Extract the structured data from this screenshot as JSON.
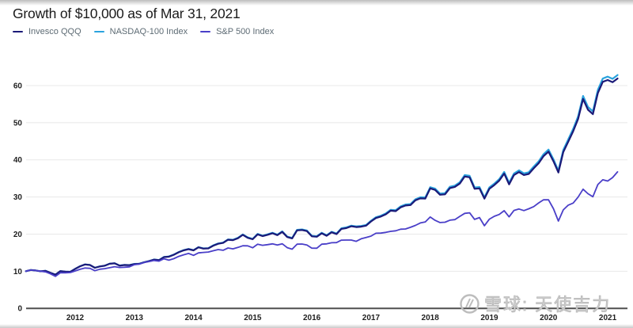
{
  "header": {
    "title": "Growth of $10,000 as of Mar 31, 2021"
  },
  "legend": {
    "items": [
      {
        "label": "Invesco QQQ",
        "color": "#1b1a78"
      },
      {
        "label": "NASDAQ-100 Index",
        "color": "#2aa3de"
      },
      {
        "label": "S&P 500 Index",
        "color": "#4a3fc8"
      }
    ]
  },
  "watermark": {
    "icon": "xueqiu-logo",
    "text": "雪球: 天使吉力"
  },
  "chart_data": {
    "type": "line",
    "title": "Growth of $10,000 as of Mar 31, 2021",
    "x_unit": "month",
    "x_range": [
      "2011-03",
      "2021-03"
    ],
    "x_tick_labels": [
      "2012",
      "2013",
      "2014",
      "2015",
      "2016",
      "2017",
      "2018",
      "2019",
      "2020",
      "2021"
    ],
    "x_tick_month_index": [
      10,
      22,
      34,
      46,
      58,
      70,
      82,
      94,
      106,
      118
    ],
    "y_ticks": [
      0,
      10,
      20,
      30,
      40,
      50,
      60
    ],
    "ylim": [
      0,
      63
    ],
    "grid": "horizontal",
    "legend_position": "top-left",
    "series": [
      {
        "name": "Invesco QQQ",
        "color": "#1b1a78",
        "values": [
          10,
          10.33,
          10.2,
          9.98,
          10.1,
          9.55,
          9.1,
          10.02,
          9.9,
          9.83,
          10.63,
          11.33,
          11.83,
          11.68,
          10.93,
          11.28,
          11.48,
          12.01,
          12.13,
          11.51,
          11.68,
          11.63,
          11.93,
          12,
          12.4,
          12.72,
          13.12,
          12.97,
          13.8,
          13.92,
          14.43,
          15.1,
          15.62,
          15.94,
          15.62,
          16.42,
          16.08,
          16.15,
          16.88,
          17.39,
          17.62,
          18.48,
          18.38,
          18.88,
          19.8,
          19,
          18.6,
          19.93,
          19.45,
          19.8,
          20.22,
          19.72,
          20.6,
          19.2,
          18.83,
          21,
          21.1,
          20.8,
          19.4,
          19.28,
          20.2,
          19.55,
          20.48,
          20,
          21.4,
          21.62,
          22.1,
          21.9,
          22,
          22.27,
          23.4,
          24.32,
          24.72,
          25.33,
          26.31,
          26.18,
          27.2,
          27.7,
          27.82,
          29.1,
          29.62,
          29.57,
          32.3,
          31.9,
          30.6,
          30.7,
          32.4,
          32.7,
          33.6,
          35.5,
          35.3,
          32.2,
          32.3,
          29.55,
          32.2,
          33.2,
          34.4,
          36.3,
          33.4,
          35.9,
          36.7,
          35.9,
          36.2,
          37.7,
          39.1,
          41,
          42.2,
          39.6,
          36.6,
          42.1,
          44.9,
          47.7,
          51,
          56.4,
          53.5,
          52.3,
          58,
          61,
          61.5,
          60.9,
          61.9
        ]
      },
      {
        "name": "NASDAQ-100 Index",
        "color": "#2aa3de",
        "values": [
          10,
          10.33,
          10.2,
          9.98,
          10.11,
          9.56,
          9.11,
          10.03,
          9.91,
          9.84,
          10.64,
          11.35,
          11.85,
          11.7,
          10.95,
          11.3,
          11.5,
          12.04,
          12.16,
          11.54,
          11.71,
          11.66,
          11.96,
          12.03,
          12.44,
          12.76,
          13.16,
          13.01,
          13.85,
          13.97,
          14.48,
          15.16,
          15.68,
          16.01,
          15.69,
          16.49,
          16.15,
          16.22,
          16.96,
          17.48,
          17.71,
          18.57,
          18.48,
          18.98,
          19.91,
          19.11,
          18.71,
          20.05,
          19.57,
          19.92,
          20.35,
          19.85,
          20.73,
          19.33,
          18.96,
          21.14,
          21.25,
          20.95,
          19.54,
          19.42,
          20.35,
          19.7,
          20.64,
          20.16,
          21.57,
          21.8,
          22.28,
          22.08,
          22.19,
          22.46,
          23.6,
          24.54,
          24.94,
          25.56,
          26.55,
          26.43,
          27.46,
          27.97,
          28.09,
          29.39,
          29.92,
          29.87,
          32.63,
          32.23,
          30.92,
          31.03,
          32.75,
          33.06,
          33.97,
          35.89,
          35.7,
          32.57,
          32.67,
          29.89,
          32.58,
          33.59,
          34.81,
          36.74,
          33.81,
          36.34,
          37.16,
          36.35,
          36.66,
          38.19,
          39.61,
          41.54,
          42.76,
          40.13,
          37.09,
          42.67,
          45.52,
          48.36,
          51.71,
          57.2,
          54.26,
          53.05,
          58.84,
          61.89,
          62.41,
          61.81,
          62.83
        ]
      },
      {
        "name": "S&P 500 Index",
        "color": "#4a3fc8",
        "values": [
          10,
          10.3,
          10.18,
          10.01,
          9.81,
          9.28,
          8.63,
          9.57,
          9.55,
          9.64,
          10.07,
          10.51,
          10.85,
          10.78,
          10.14,
          10.55,
          10.7,
          10.94,
          11.22,
          11.01,
          11.08,
          11.18,
          11.75,
          11.91,
          12.36,
          12.6,
          12.89,
          12.72,
          13.36,
          12.98,
          13.38,
          14,
          14.42,
          14.79,
          14.28,
          14.93,
          15.06,
          15.17,
          15.52,
          15.84,
          15.63,
          16.25,
          16.02,
          16.41,
          16.85,
          16.83,
          16.32,
          17.26,
          16.99,
          17.15,
          17.37,
          17.04,
          17.39,
          16.34,
          15.94,
          17.28,
          17.33,
          17.06,
          16.21,
          16.19,
          17.29,
          17.36,
          17.67,
          17.71,
          18.37,
          18.39,
          18.39,
          18.06,
          18.73,
          19.1,
          19.46,
          20.23,
          20.26,
          20.47,
          20.75,
          20.88,
          21.31,
          21.38,
          21.82,
          22.33,
          23.01,
          23.27,
          24.6,
          23.7,
          23.1,
          23.19,
          23.75,
          23.89,
          24.78,
          25.59,
          25.73,
          23.97,
          24.46,
          22.25,
          24.03,
          24.8,
          25.29,
          26.31,
          24.64,
          26.38,
          26.75,
          26.33,
          26.82,
          27.4,
          28.4,
          29.25,
          29.24,
          26.83,
          23.52,
          26.53,
          27.8,
          28.35,
          29.95,
          32.1,
          30.88,
          30.06,
          33.35,
          34.63,
          34.28,
          35.23,
          36.77
        ]
      }
    ]
  }
}
